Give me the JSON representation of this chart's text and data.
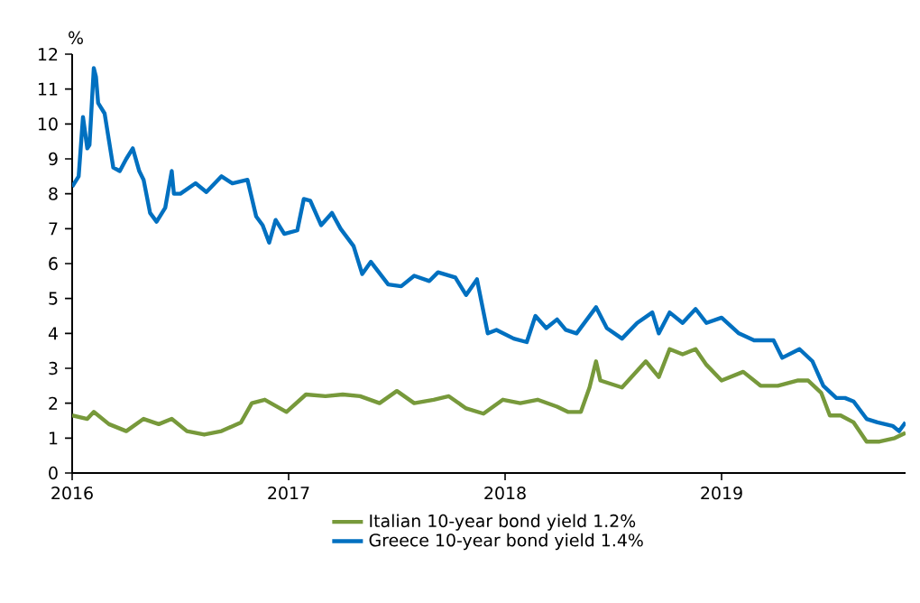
{
  "chart_data": {
    "type": "line",
    "ylabel": "%",
    "xlim": [
      2016,
      2019.85
    ],
    "xticks": [
      2016,
      2017,
      2018,
      2019
    ],
    "ylim": [
      0,
      12
    ],
    "yticks": [
      0,
      1,
      2,
      3,
      4,
      5,
      6,
      7,
      8,
      9,
      10,
      11,
      12
    ],
    "grid": false,
    "legend": "bottom",
    "marker": "none",
    "line_style": "solid",
    "series": [
      {
        "name": "Italian 10-year bond yield 1.2%",
        "color": "#77993b",
        "x": [
          2016.0,
          2016.07,
          2016.1,
          2016.17,
          2016.25,
          2016.33,
          2016.4,
          2016.46,
          2016.53,
          2016.61,
          2016.69,
          2016.78,
          2016.83,
          2016.89,
          2016.99,
          2017.08,
          2017.17,
          2017.25,
          2017.33,
          2017.42,
          2017.5,
          2017.58,
          2017.67,
          2017.74,
          2017.82,
          2017.9,
          2017.99,
          2018.07,
          2018.15,
          2018.24,
          2018.29,
          2018.35,
          2018.39,
          2018.42,
          2018.44,
          2018.54,
          2018.65,
          2018.71,
          2018.76,
          2018.82,
          2018.88,
          2018.93,
          2019.0,
          2019.1,
          2019.18,
          2019.26,
          2019.35,
          2019.4,
          2019.46,
          2019.5,
          2019.55,
          2019.61,
          2019.67,
          2019.73,
          2019.8,
          2019.85
        ],
        "values": [
          1.65,
          1.55,
          1.75,
          1.4,
          1.2,
          1.55,
          1.4,
          1.55,
          1.2,
          1.1,
          1.2,
          1.45,
          2.0,
          2.1,
          1.75,
          2.25,
          2.2,
          2.25,
          2.2,
          2.0,
          2.35,
          2.0,
          2.1,
          2.2,
          1.85,
          1.7,
          2.1,
          2.0,
          2.1,
          1.9,
          1.75,
          1.75,
          2.45,
          3.2,
          2.65,
          2.45,
          3.2,
          2.75,
          3.55,
          3.4,
          3.55,
          3.1,
          2.65,
          2.9,
          2.5,
          2.5,
          2.65,
          2.65,
          2.3,
          1.65,
          1.65,
          1.45,
          0.9,
          0.9,
          1.0,
          1.15
        ]
      },
      {
        "name": "Greece 10-year bond yield 1.4%",
        "color": "#0070c0",
        "x": [
          2016.0,
          2016.03,
          2016.05,
          2016.07,
          2016.08,
          2016.1,
          2016.11,
          2016.12,
          2016.15,
          2016.19,
          2016.22,
          2016.25,
          2016.28,
          2016.31,
          2016.33,
          2016.36,
          2016.39,
          2016.43,
          2016.46,
          2016.47,
          2016.5,
          2016.57,
          2016.62,
          2016.69,
          2016.74,
          2016.81,
          2016.85,
          2016.88,
          2016.91,
          2016.94,
          2016.98,
          2017.04,
          2017.07,
          2017.1,
          2017.15,
          2017.2,
          2017.24,
          2017.3,
          2017.34,
          2017.38,
          2017.46,
          2017.52,
          2017.58,
          2017.65,
          2017.69,
          2017.77,
          2017.82,
          2017.87,
          2017.92,
          2017.96,
          2018.04,
          2018.1,
          2018.14,
          2018.19,
          2018.24,
          2018.28,
          2018.33,
          2018.42,
          2018.47,
          2018.54,
          2018.61,
          2018.68,
          2018.71,
          2018.76,
          2018.82,
          2018.88,
          2018.93,
          2019.0,
          2019.08,
          2019.15,
          2019.24,
          2019.28,
          2019.36,
          2019.42,
          2019.47,
          2019.53,
          2019.57,
          2019.61,
          2019.67,
          2019.72,
          2019.79,
          2019.82,
          2019.85
        ],
        "values": [
          8.2,
          8.5,
          10.2,
          9.3,
          9.4,
          11.6,
          11.35,
          10.6,
          10.3,
          8.75,
          8.65,
          9.0,
          9.3,
          8.65,
          8.4,
          7.45,
          7.2,
          7.6,
          8.65,
          8.0,
          8.0,
          8.3,
          8.05,
          8.5,
          8.3,
          8.4,
          7.35,
          7.1,
          6.6,
          7.25,
          6.85,
          6.95,
          7.85,
          7.8,
          7.1,
          7.45,
          7.0,
          6.5,
          5.7,
          6.05,
          5.4,
          5.35,
          5.65,
          5.5,
          5.75,
          5.6,
          5.1,
          5.55,
          4.0,
          4.1,
          3.85,
          3.75,
          4.5,
          4.15,
          4.4,
          4.1,
          4.0,
          4.75,
          4.15,
          3.85,
          4.3,
          4.6,
          4.0,
          4.6,
          4.3,
          4.7,
          4.3,
          4.45,
          4.0,
          3.8,
          3.8,
          3.3,
          3.55,
          3.2,
          2.5,
          2.15,
          2.15,
          2.05,
          1.55,
          1.45,
          1.35,
          1.2,
          1.45
        ]
      }
    ]
  }
}
